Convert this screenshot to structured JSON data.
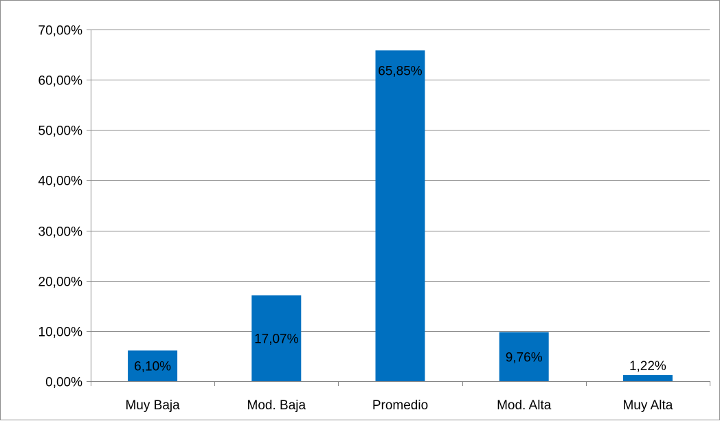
{
  "chart_data": {
    "type": "bar",
    "title": "",
    "xlabel": "",
    "ylabel": "",
    "categories": [
      "Muy Baja",
      "Mod. Baja",
      "Promedio",
      "Mod. Alta",
      "Muy Alta"
    ],
    "values": [
      6.1,
      17.07,
      65.85,
      9.76,
      1.22
    ],
    "data_labels": [
      "6,10%",
      "17,07%",
      "65,85%",
      "9,76%",
      "1,22%"
    ],
    "ylim": [
      0,
      70
    ],
    "yticks": [
      0,
      10,
      20,
      30,
      40,
      50,
      60,
      70
    ],
    "ytick_labels": [
      "0,00%",
      "10,00%",
      "20,00%",
      "30,00%",
      "40,00%",
      "50,00%",
      "60,00%",
      "70,00%"
    ],
    "grid": true,
    "legend": "none",
    "bar_color": "#0070C0",
    "gridline_color": "#868686"
  }
}
